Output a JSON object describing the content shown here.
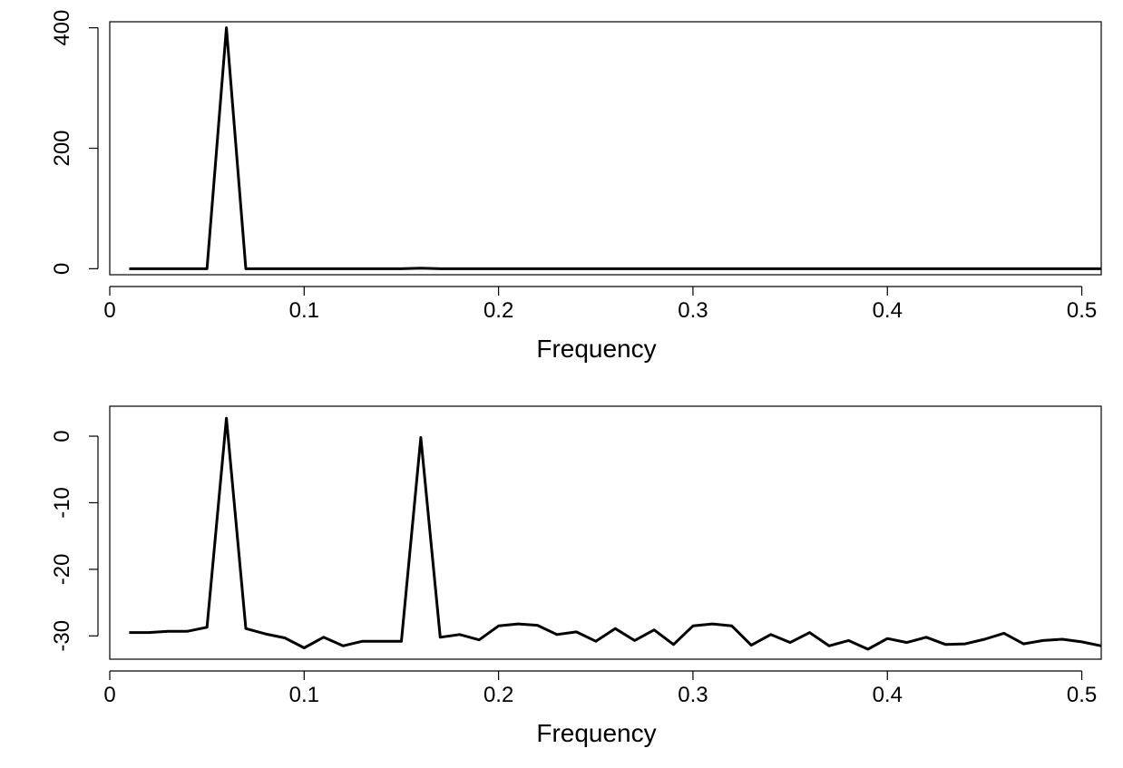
{
  "chart_data": [
    {
      "type": "line",
      "title": "",
      "xlabel": "Frequency",
      "ylabel": "",
      "xlim": [
        0,
        0.51
      ],
      "ylim": [
        -10,
        410
      ],
      "xticks": [
        0,
        0.1,
        0.2,
        0.3,
        0.4,
        0.5
      ],
      "xtick_labels": [
        "0",
        "0.1",
        "0.2",
        "0.3",
        "0.4",
        "0.5"
      ],
      "yticks": [
        0,
        200,
        400
      ],
      "ytick_labels": [
        "0",
        "200",
        "400"
      ],
      "grid": false,
      "color": "#000000",
      "series": [
        {
          "x": [
            0.01,
            0.02,
            0.03,
            0.04,
            0.05,
            0.06,
            0.07,
            0.08,
            0.09,
            0.1,
            0.11,
            0.12,
            0.13,
            0.14,
            0.15,
            0.16,
            0.17,
            0.18,
            0.19,
            0.2,
            0.21,
            0.22,
            0.23,
            0.24,
            0.25,
            0.26,
            0.27,
            0.28,
            0.29,
            0.3,
            0.31,
            0.32,
            0.33,
            0.34,
            0.35,
            0.36,
            0.37,
            0.38,
            0.39,
            0.4,
            0.41,
            0.42,
            0.43,
            0.44,
            0.45,
            0.46,
            0.47,
            0.48,
            0.49,
            0.5,
            0.51
          ],
          "y": [
            0,
            0,
            0,
            0,
            0,
            400,
            0,
            0,
            0,
            0,
            0,
            0,
            0,
            0,
            0,
            1,
            0,
            0,
            0,
            0,
            0,
            0,
            0,
            0,
            0,
            0,
            0,
            0,
            0,
            0,
            0,
            0,
            0,
            0,
            0,
            0,
            0,
            0,
            0,
            0,
            0,
            0,
            0,
            0,
            0,
            0,
            0,
            0,
            0,
            0,
            0
          ]
        }
      ]
    },
    {
      "type": "line",
      "title": "",
      "xlabel": "Frequency",
      "ylabel": "",
      "xlim": [
        0,
        0.51
      ],
      "ylim": [
        -33.5,
        4.5
      ],
      "xticks": [
        0,
        0.1,
        0.2,
        0.3,
        0.4,
        0.5
      ],
      "xtick_labels": [
        "0",
        "0.1",
        "0.2",
        "0.3",
        "0.4",
        "0.5"
      ],
      "yticks": [
        0,
        -10,
        -20,
        -30
      ],
      "ytick_labels": [
        "0",
        "-10",
        "-20",
        "-30"
      ],
      "grid": false,
      "color": "#000000",
      "series": [
        {
          "x": [
            0.01,
            0.02,
            0.03,
            0.04,
            0.05,
            0.06,
            0.07,
            0.08,
            0.09,
            0.1,
            0.11,
            0.12,
            0.13,
            0.14,
            0.15,
            0.16,
            0.17,
            0.18,
            0.19,
            0.2,
            0.21,
            0.22,
            0.23,
            0.24,
            0.25,
            0.26,
            0.27,
            0.28,
            0.29,
            0.3,
            0.31,
            0.32,
            0.33,
            0.34,
            0.35,
            0.36,
            0.37,
            0.38,
            0.39,
            0.4,
            0.41,
            0.42,
            0.43,
            0.44,
            0.45,
            0.46,
            0.47,
            0.48,
            0.49,
            0.5,
            0.51
          ],
          "y": [
            -29.5,
            -29.5,
            -29.3,
            -29.3,
            -28.7,
            2.7,
            -28.9,
            -29.7,
            -30.3,
            -31.8,
            -30.2,
            -31.5,
            -30.8,
            -30.8,
            -30.8,
            -0.2,
            -30.2,
            -29.8,
            -30.6,
            -28.5,
            -28.2,
            -28.4,
            -29.8,
            -29.4,
            -30.8,
            -28.9,
            -30.7,
            -29.1,
            -31.3,
            -28.5,
            -28.2,
            -28.5,
            -31.4,
            -29.8,
            -31.0,
            -29.5,
            -31.5,
            -30.7,
            -32.0,
            -30.4,
            -31.0,
            -30.2,
            -31.3,
            -31.2,
            -30.5,
            -29.6,
            -31.2,
            -30.7,
            -30.5,
            -30.9,
            -31.5
          ]
        }
      ]
    }
  ]
}
